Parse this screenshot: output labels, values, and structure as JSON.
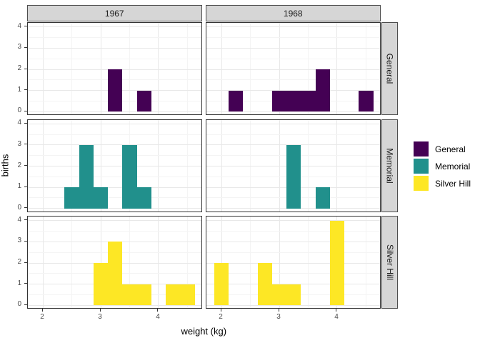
{
  "chart_data": {
    "type": "histogram",
    "title": "",
    "xlabel": "weight (kg)",
    "ylabel": "births",
    "facets": {
      "columns": [
        "1967",
        "1968"
      ],
      "rows": [
        "General",
        "Memorial",
        "Silver Hill"
      ]
    },
    "x_ticks": [
      "2",
      "3",
      "4"
    ],
    "y_ticks": [
      "0",
      "1",
      "2",
      "3",
      "4"
    ],
    "x_minor": [
      2.5,
      3.5,
      4.5
    ],
    "y_minor": [
      0.5,
      1.5,
      2.5,
      3.5
    ],
    "x_domain": [
      1.74,
      4.76
    ],
    "y_domain": [
      -0.2,
      4.2
    ],
    "binwidth": 0.25,
    "grid": "on",
    "legend_position": "right",
    "series": [
      {
        "hospital": "General",
        "year": "1967",
        "bins": [
          {
            "center": 3.25,
            "count": 2
          },
          {
            "center": 3.75,
            "count": 1
          }
        ]
      },
      {
        "hospital": "General",
        "year": "1968",
        "bins": [
          {
            "center": 2.25,
            "count": 1
          },
          {
            "center": 3.0,
            "count": 1
          },
          {
            "center": 3.25,
            "count": 1
          },
          {
            "center": 3.5,
            "count": 1
          },
          {
            "center": 3.75,
            "count": 2
          },
          {
            "center": 4.5,
            "count": 1
          }
        ]
      },
      {
        "hospital": "Memorial",
        "year": "1967",
        "bins": [
          {
            "center": 2.5,
            "count": 1
          },
          {
            "center": 2.75,
            "count": 3
          },
          {
            "center": 3.0,
            "count": 1
          },
          {
            "center": 3.5,
            "count": 3
          },
          {
            "center": 3.75,
            "count": 1
          }
        ]
      },
      {
        "hospital": "Memorial",
        "year": "1968",
        "bins": [
          {
            "center": 3.25,
            "count": 3
          },
          {
            "center": 3.75,
            "count": 1
          }
        ]
      },
      {
        "hospital": "Silver Hill",
        "year": "1967",
        "bins": [
          {
            "center": 3.0,
            "count": 2
          },
          {
            "center": 3.25,
            "count": 3
          },
          {
            "center": 3.5,
            "count": 1
          },
          {
            "center": 3.75,
            "count": 1
          },
          {
            "center": 4.25,
            "count": 1
          },
          {
            "center": 4.5,
            "count": 1
          }
        ]
      },
      {
        "hospital": "Silver Hill",
        "year": "1968",
        "bins": [
          {
            "center": 2.0,
            "count": 2
          },
          {
            "center": 2.75,
            "count": 2
          },
          {
            "center": 3.0,
            "count": 1
          },
          {
            "center": 3.25,
            "count": 1
          },
          {
            "center": 4.0,
            "count": 4
          }
        ]
      }
    ],
    "legend": {
      "entries": [
        {
          "label": "General",
          "color": "#440154"
        },
        {
          "label": "Memorial",
          "color": "#21908C"
        },
        {
          "label": "Silver Hill",
          "color": "#FDE725"
        }
      ]
    },
    "colors": {
      "strip_fill": "#d6d6d6",
      "panel_border": "#333333",
      "grid_major": "#e8e8e8",
      "grid_minor": "#f4f4f4",
      "axis_text": "#4d4d4d"
    }
  }
}
